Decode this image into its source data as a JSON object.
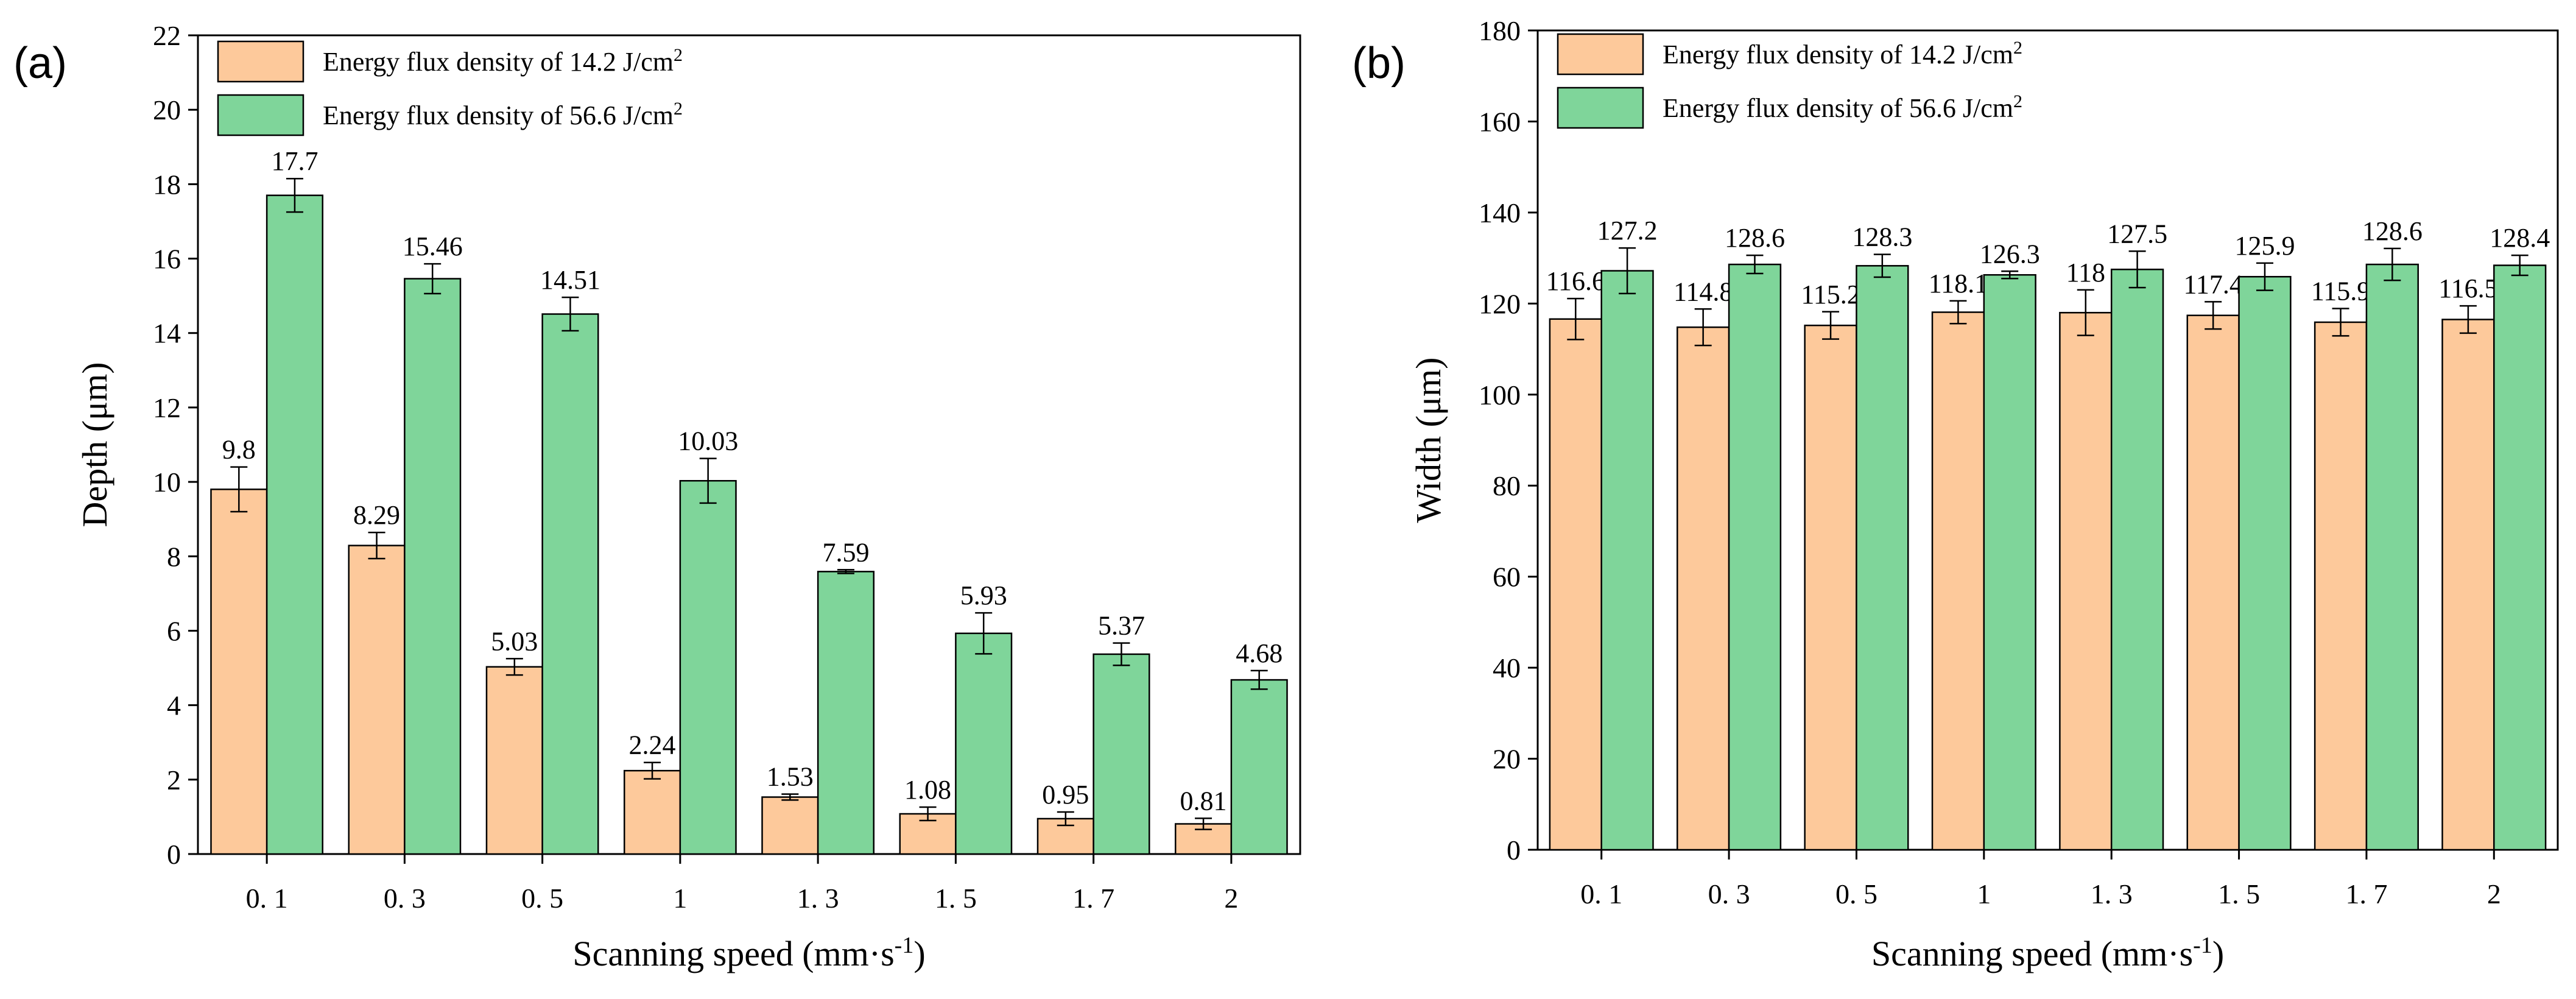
{
  "colors": {
    "series_low": "#FDC99B",
    "series_high": "#7FD59A",
    "axis": "#000000"
  },
  "chart_data": [
    {
      "type": "bar",
      "panel_label": "(a)",
      "title": "",
      "xlabel_main": "Scanning speed (mm·s",
      "xlabel_sup": "-1",
      "xlabel_tail": ")",
      "ylabel": "Depth (μm)",
      "ylim": [
        0,
        22
      ],
      "yticks": [
        "0",
        "2",
        "4",
        "6",
        "8",
        "10",
        "12",
        "14",
        "16",
        "18",
        "20",
        "22"
      ],
      "categories": [
        "0. 1",
        "0. 3",
        "0. 5",
        "1",
        "1. 3",
        "1. 5",
        "1. 7",
        "2"
      ],
      "legend_position": "top-left",
      "series": [
        {
          "name": "Energy flux density of 14.2 J/cm",
          "name_sup": "2",
          "values": [
            9.8,
            8.29,
            5.03,
            2.24,
            1.53,
            1.08,
            0.95,
            0.81
          ],
          "labels": [
            "9.8",
            "8.29",
            "5.03",
            "2.24",
            "1.53",
            "1.08",
            "0.95",
            "0.81"
          ],
          "errors": [
            0.6,
            0.35,
            0.22,
            0.22,
            0.08,
            0.18,
            0.18,
            0.15
          ]
        },
        {
          "name": "Energy flux density of 56.6 J/cm",
          "name_sup": "2",
          "values": [
            17.7,
            15.46,
            14.51,
            10.03,
            7.59,
            5.93,
            5.37,
            4.68
          ],
          "labels": [
            "17.7",
            "15.46",
            "14.51",
            "10.03",
            "7.59",
            "5.93",
            "5.37",
            "4.68"
          ],
          "errors": [
            0.45,
            0.4,
            0.45,
            0.6,
            0.05,
            0.55,
            0.3,
            0.25
          ]
        }
      ]
    },
    {
      "type": "bar",
      "panel_label": "(b)",
      "title": "",
      "xlabel_main": "Scanning speed (mm·s",
      "xlabel_sup": "-1",
      "xlabel_tail": ")",
      "ylabel": "Width (μm)",
      "ylim": [
        0,
        180
      ],
      "yticks": [
        "0",
        "20",
        "40",
        "60",
        "80",
        "100",
        "120",
        "140",
        "160",
        "180"
      ],
      "categories": [
        "0. 1",
        "0. 3",
        "0. 5",
        "1",
        "1. 3",
        "1. 5",
        "1. 7",
        "2"
      ],
      "legend_position": "top-left",
      "series": [
        {
          "name": "Energy flux density of 14.2 J/cm",
          "name_sup": "2",
          "values": [
            116.6,
            114.8,
            115.2,
            118.1,
            118,
            117.4,
            115.9,
            116.5
          ],
          "labels": [
            "116.6",
            "114.8",
            "115.2",
            "118.1",
            "118",
            "117.4",
            "115.9",
            "116.5"
          ],
          "errors": [
            4.5,
            4,
            3,
            2.5,
            5,
            3,
            3,
            3
          ]
        },
        {
          "name": "Energy flux density of 56.6 J/cm",
          "name_sup": "2",
          "values": [
            127.2,
            128.6,
            128.3,
            126.3,
            127.5,
            125.9,
            128.6,
            128.4
          ],
          "labels": [
            "127.2",
            "128.6",
            "128.3",
            "126.3",
            "127.5",
            "125.9",
            "128.6",
            "128.4"
          ],
          "errors": [
            5,
            2,
            2.5,
            0.8,
            4,
            3,
            3.5,
            2.2
          ]
        }
      ]
    }
  ]
}
